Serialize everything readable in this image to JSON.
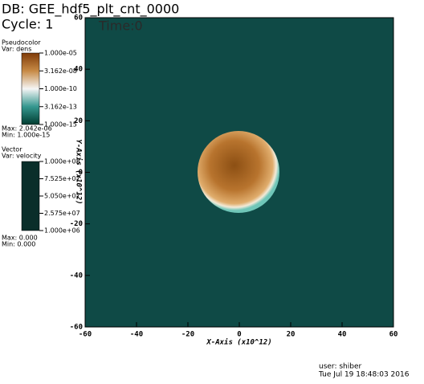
{
  "chart_data": {
    "type": "pseudocolor",
    "database": "DB: GEE_hdf5_plt_cnt_0000",
    "cycle": "Cycle: 1",
    "time": "Time:0",
    "x_label": "X-Axis (x10^12)",
    "y_label": "Y-Axis (x10^12)",
    "xlim": [
      -60,
      60
    ],
    "ylim": [
      -60,
      60
    ],
    "xticks": [
      -60,
      -40,
      -20,
      0,
      20,
      40,
      60
    ],
    "yticks": [
      -60,
      -40,
      -20,
      0,
      20,
      40,
      60
    ],
    "field_color": "#0f4a46",
    "pseudocolor_legend": {
      "title": "Pseudocolor",
      "var": "Var: dens",
      "log": true,
      "lim": [
        1e-15,
        1e-05
      ],
      "ticks": [
        {
          "value": 1e-05,
          "label": "1.000e-05"
        },
        {
          "value": 3.162e-08,
          "label": "3.162e-08"
        },
        {
          "value": 1e-10,
          "label": "1.000e-10"
        },
        {
          "value": 3.162e-13,
          "label": "3.162e-13"
        },
        {
          "value": 1e-15,
          "label": "1.000e-15"
        }
      ],
      "colors": [
        "#7f3b08",
        "#c78a45",
        "#f5f5f5",
        "#35978f",
        "#003c30"
      ],
      "max": "Max: 2.042e-06",
      "min": "Min: 1.000e-15"
    },
    "vector_legend": {
      "title": "Vector",
      "var": "Var: velocity",
      "log": false,
      "lim": [
        1000000,
        100000000
      ],
      "ticks": [
        {
          "value": 100000000,
          "label": "1.000e+08"
        },
        {
          "value": 75250000,
          "label": "7.525e+07"
        },
        {
          "value": 50500000,
          "label": "5.050e+07"
        },
        {
          "value": 25750000,
          "label": "2.575e+07"
        },
        {
          "value": 1000000,
          "label": "1.000e+06"
        }
      ],
      "colors": [
        "#0a2e2a",
        "#0a2e2a"
      ],
      "max": "Max: 0.000",
      "min": "Min: 0.000"
    },
    "user": "user: shiber",
    "date": "Tue Jul 19 18:48:03 2016"
  }
}
